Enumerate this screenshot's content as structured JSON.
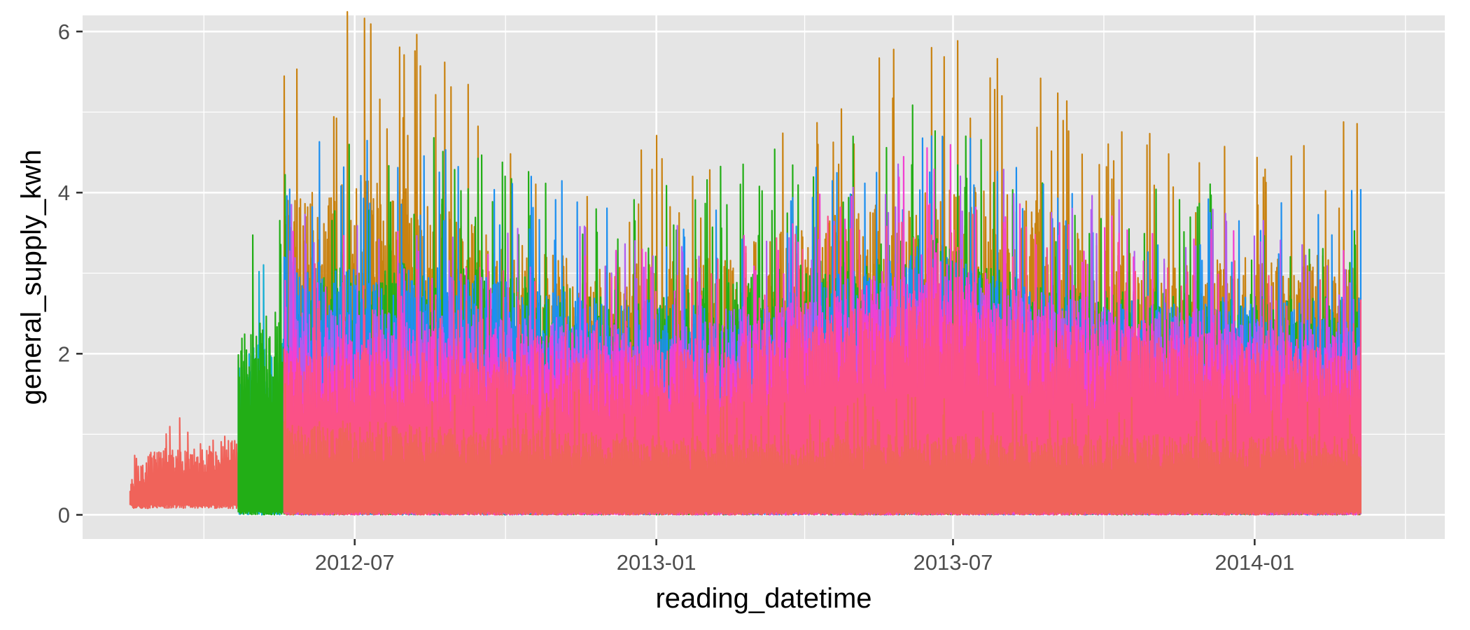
{
  "chart_data": {
    "type": "line",
    "title": "",
    "xlabel": "reading_datetime",
    "ylabel": "general_supply_kwh",
    "x_range": [
      "2012-01-17",
      "2014-04-27"
    ],
    "ylim": [
      -0.3,
      6.2
    ],
    "y_ticks": [
      0,
      2,
      4,
      6
    ],
    "x_ticks": [
      {
        "date": "2012-07-01",
        "label": "2012-07"
      },
      {
        "date": "2013-01-01",
        "label": "2013-01"
      },
      {
        "date": "2013-07-01",
        "label": "2013-07"
      },
      {
        "date": "2014-01-01",
        "label": "2014-01"
      }
    ],
    "grid": true,
    "legend": "none",
    "colors": {
      "panel": "#e5e5e5",
      "grid": "#ffffff",
      "salmon": "#f0635a",
      "orange": "#c98210",
      "green": "#22ae16",
      "blue": "#1c8ff0",
      "cyan": "#14aed4",
      "magenta": "#f23fd2",
      "pink": "#fb5187",
      "purple": "#b05cf0"
    },
    "series": [
      {
        "color_key": "salmon",
        "start": "2012-02-15",
        "end": "2012-04-21",
        "envelope": [
          [
            "2012-02-15",
            0.5
          ],
          [
            "2012-03-01",
            0.85
          ],
          [
            "2012-03-20",
            0.8
          ],
          [
            "2012-04-10",
            1.0
          ],
          [
            "2012-04-21",
            0.9
          ]
        ],
        "baseline": 0.08
      },
      {
        "color_key": "cyan",
        "start": "2012-04-21",
        "end": "2012-05-19",
        "envelope": [
          [
            "2012-04-21",
            2.0
          ],
          [
            "2012-05-19",
            2.3
          ]
        ],
        "baseline": 0.0
      },
      {
        "color_key": "green",
        "start": "2012-04-21",
        "end": "2012-05-19",
        "envelope": [
          [
            "2012-04-21",
            2.3
          ],
          [
            "2012-05-19",
            2.6
          ]
        ],
        "baseline": 0.0
      },
      {
        "color_key": "orange",
        "start": "2012-05-19",
        "end": "2014-03-07",
        "envelope": [
          [
            "2012-05-19",
            3.9
          ],
          [
            "2012-06-15",
            4.3
          ],
          [
            "2012-08-15",
            4.0
          ],
          [
            "2012-10-01",
            3.4
          ],
          [
            "2012-12-01",
            3.1
          ],
          [
            "2013-02-01",
            3.2
          ],
          [
            "2013-04-15",
            3.7
          ],
          [
            "2013-07-01",
            4.1
          ],
          [
            "2013-08-15",
            4.0
          ],
          [
            "2013-10-01",
            3.3
          ],
          [
            "2013-12-01",
            3.2
          ],
          [
            "2014-03-07",
            3.3
          ]
        ],
        "baseline": 0.0
      },
      {
        "color_key": "green",
        "start": "2012-05-19",
        "end": "2014-03-07",
        "envelope": [
          [
            "2012-05-19",
            3.0
          ],
          [
            "2012-08-15",
            3.2
          ],
          [
            "2013-01-01",
            2.7
          ],
          [
            "2013-06-15",
            3.5
          ],
          [
            "2013-09-01",
            2.8
          ],
          [
            "2014-03-07",
            2.7
          ]
        ],
        "baseline": 0.0
      },
      {
        "color_key": "blue",
        "start": "2012-05-19",
        "end": "2014-03-07",
        "envelope": [
          [
            "2012-05-19",
            3.2
          ],
          [
            "2012-08-15",
            3.1
          ],
          [
            "2012-12-01",
            2.7
          ],
          [
            "2013-03-01",
            2.6
          ],
          [
            "2013-06-15",
            3.4
          ],
          [
            "2013-09-01",
            2.7
          ],
          [
            "2014-03-07",
            2.7
          ]
        ],
        "baseline": 0.0
      },
      {
        "color_key": "purple",
        "start": "2012-05-19",
        "end": "2014-03-07",
        "envelope": [
          [
            "2012-05-19",
            2.6
          ],
          [
            "2013-01-01",
            2.4
          ],
          [
            "2013-06-15",
            3.0
          ],
          [
            "2014-03-07",
            2.3
          ]
        ],
        "baseline": 0.0
      },
      {
        "color_key": "magenta",
        "start": "2012-05-19",
        "end": "2014-03-07",
        "envelope": [
          [
            "2012-05-19",
            2.4
          ],
          [
            "2012-10-01",
            2.3
          ],
          [
            "2013-02-01",
            2.2
          ],
          [
            "2013-06-20",
            3.3
          ],
          [
            "2013-09-01",
            2.6
          ],
          [
            "2014-03-07",
            2.2
          ]
        ],
        "baseline": 0.0
      },
      {
        "color_key": "pink",
        "start": "2012-05-19",
        "end": "2014-03-07",
        "envelope": [
          [
            "2012-05-19",
            2.1
          ],
          [
            "2013-01-01",
            2.0
          ],
          [
            "2013-06-20",
            2.8
          ],
          [
            "2013-09-01",
            2.4
          ],
          [
            "2014-03-07",
            2.0
          ]
        ],
        "baseline": 0.0
      },
      {
        "color_key": "salmon",
        "start": "2012-05-19",
        "end": "2014-03-07",
        "envelope": [
          [
            "2012-05-19",
            1.2
          ],
          [
            "2013-01-01",
            1.0
          ],
          [
            "2014-03-07",
            1.0
          ]
        ],
        "baseline": 0.0
      }
    ]
  }
}
